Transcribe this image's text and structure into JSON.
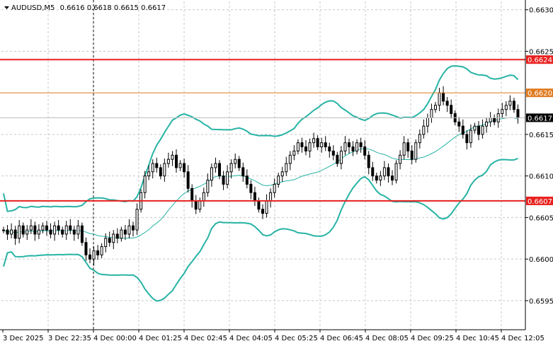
{
  "header": {
    "symbol": "AUDUSD,M5",
    "ohlc": "0.6616 0.6618 0.6615 0.6617"
  },
  "colors": {
    "background": "#ffffff",
    "candles": "#000000",
    "bollinger": "#26b3a4",
    "moving_average": "#26b3a4",
    "resistance_line": "#e8201e",
    "mid_line": "#e07b1f",
    "current_price_badge": "#000000",
    "grid": "#c8c8c8"
  },
  "chart_data": {
    "type": "candlestick",
    "instrument": "AUDUSD",
    "timeframe": "M5",
    "ylim": [
      0.65915,
      0.6631
    ],
    "y_ticks": [
      "0.6630",
      "0.6625",
      "0.6615",
      "0.6610",
      "0.6605",
      "0.6600",
      "0.6595"
    ],
    "x_ticks": [
      "3 Dec 2025",
      "3 Dec 22:35",
      "4 Dec 00:00",
      "4 Dec 01:25",
      "4 Dec 02:45",
      "4 Dec 04:05",
      "4 Dec 05:25",
      "4 Dec 06:45",
      "4 Dec 08:05",
      "4 Dec 09:25",
      "4 Dec 10:45",
      "4 Dec 12:05"
    ],
    "grid": true,
    "horizontal_lines": [
      {
        "price": 0.6624,
        "label": "0.6624",
        "color": "#e8201e",
        "style": "solid"
      },
      {
        "price": 0.662,
        "label": "0.6620",
        "color": "#e07b1f",
        "style": "solid"
      },
      {
        "price": 0.6607,
        "label": "0.6607",
        "color": "#e8201e",
        "style": "solid"
      }
    ],
    "current_price": {
      "price": 0.6617,
      "label": "0.6617"
    },
    "vertical_marker": "4 Dec 00:00",
    "close": [
      0.66035,
      0.6603,
      0.66035,
      0.66025,
      0.6604,
      0.6603,
      0.66035,
      0.6604,
      0.6603,
      0.66035,
      0.6604,
      0.66035,
      0.6603,
      0.6604,
      0.66035,
      0.6603,
      0.6604,
      0.66035,
      0.6603,
      0.6604,
      0.6602,
      0.66005,
      0.66,
      0.6601,
      0.66005,
      0.66015,
      0.66025,
      0.6602,
      0.6603,
      0.66025,
      0.66035,
      0.6603,
      0.6604,
      0.66035,
      0.6606,
      0.6608,
      0.661,
      0.66105,
      0.66115,
      0.6611,
      0.661,
      0.66115,
      0.6612,
      0.66125,
      0.6611,
      0.66115,
      0.66105,
      0.66085,
      0.6607,
      0.6606,
      0.6607,
      0.6608,
      0.66095,
      0.6611,
      0.66115,
      0.661,
      0.6609,
      0.66105,
      0.66115,
      0.6612,
      0.6611,
      0.661,
      0.6609,
      0.6608,
      0.6607,
      0.6606,
      0.66055,
      0.6607,
      0.6608,
      0.6609,
      0.661,
      0.66105,
      0.66115,
      0.66125,
      0.6613,
      0.6614,
      0.66135,
      0.6613,
      0.6614,
      0.66145,
      0.66135,
      0.6614,
      0.66135,
      0.6613,
      0.66125,
      0.66115,
      0.6613,
      0.6614,
      0.66135,
      0.6613,
      0.6614,
      0.66135,
      0.66125,
      0.6611,
      0.661,
      0.66095,
      0.661,
      0.6611,
      0.661,
      0.66095,
      0.66115,
      0.66125,
      0.6614,
      0.6613,
      0.6612,
      0.6614,
      0.6615,
      0.6616,
      0.6617,
      0.6618,
      0.66185,
      0.662,
      0.6619,
      0.66185,
      0.66175,
      0.66165,
      0.6616,
      0.6615,
      0.6614,
      0.66155,
      0.6616,
      0.6615,
      0.6616,
      0.66165,
      0.6617,
      0.66165,
      0.66175,
      0.6618,
      0.66185,
      0.6619,
      0.6618,
      0.6617
    ]
  }
}
